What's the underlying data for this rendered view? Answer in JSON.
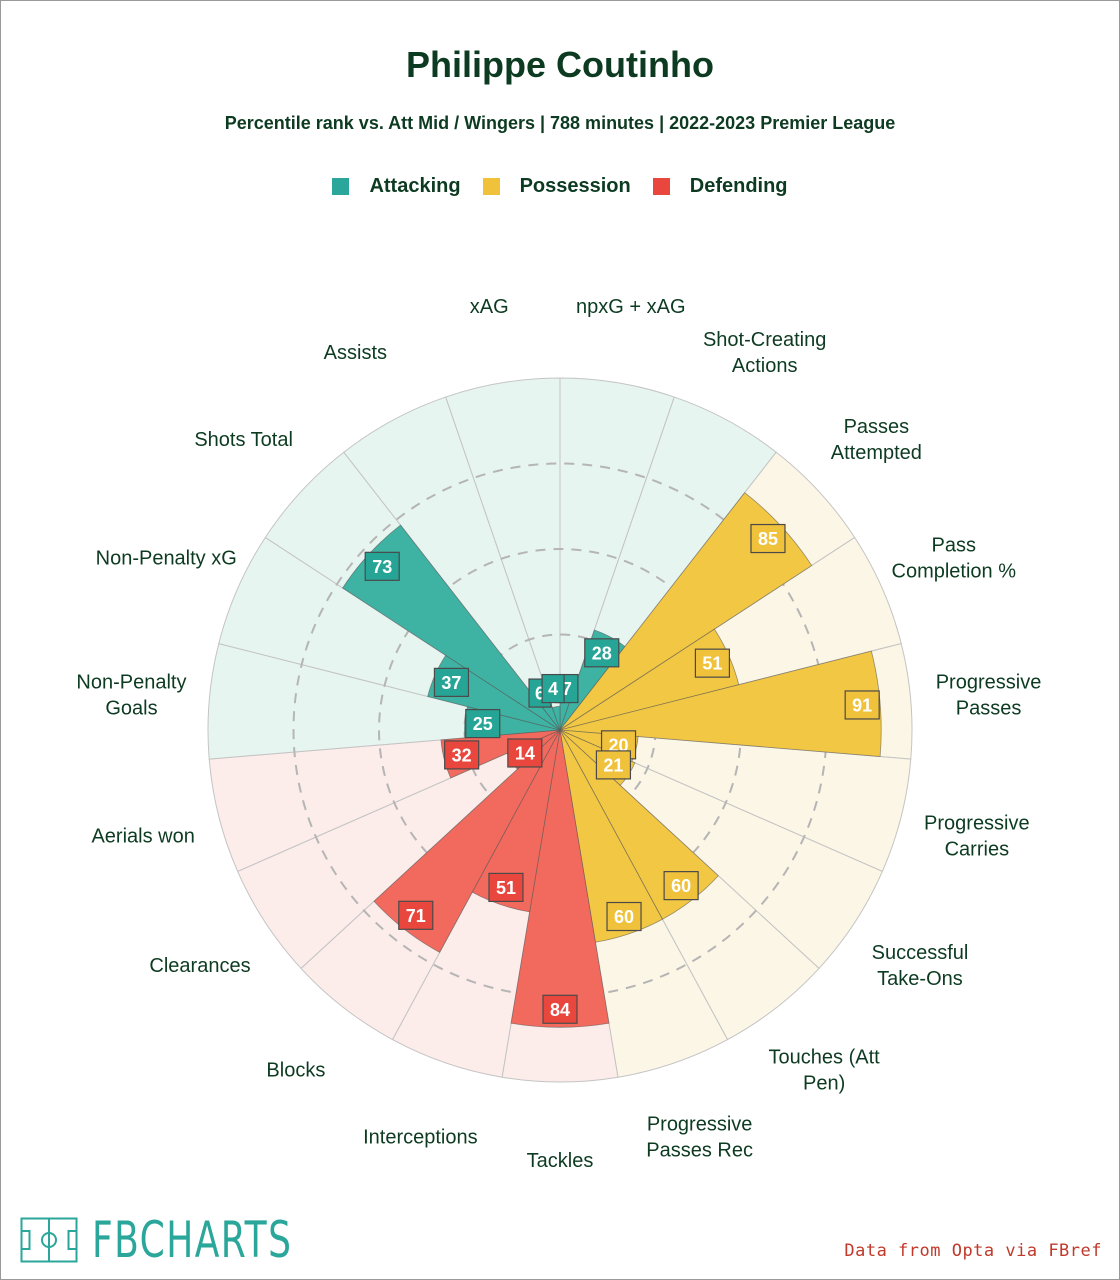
{
  "title": "Philippe Coutinho",
  "subtitle": "Percentile rank vs. Att Mid / Wingers | 788 minutes | 2022-2023 Premier League",
  "legend": [
    {
      "label": "Attacking",
      "color": "#2aa69a"
    },
    {
      "label": "Possession",
      "color": "#f0c13b"
    },
    {
      "label": "Defending",
      "color": "#e9473e"
    }
  ],
  "source": "Data from Opta via FBref",
  "logo": {
    "text": "FBCHARTS",
    "icon": "football-pitch-icon"
  },
  "chart_data": {
    "type": "radar-bar",
    "scale": [
      0,
      100
    ],
    "categories": [
      {
        "name": "Attacking",
        "fill": "#3fb3a3",
        "bg": "#e7f5f1",
        "tag": "#26a597"
      },
      {
        "name": "Possession",
        "fill": "#f2c744",
        "bg": "#fcf6e6",
        "tag": "#f0c13b"
      },
      {
        "name": "Defending",
        "fill": "#f26a5e",
        "bg": "#fcecea",
        "tag": "#e9473e"
      }
    ],
    "metrics": [
      {
        "label": "npxG + xAG",
        "value": 7,
        "category": "Attacking"
      },
      {
        "label": "Shot-Creating Actions",
        "value": 28,
        "category": "Attacking"
      },
      {
        "label": "Passes Attempted",
        "value": 85,
        "category": "Possession"
      },
      {
        "label": "Pass Completion %",
        "value": 51,
        "category": "Possession"
      },
      {
        "label": "Progressive Passes",
        "value": 91,
        "category": "Possession"
      },
      {
        "label": "Progressive Carries",
        "value": 20,
        "category": "Possession"
      },
      {
        "label": "Successful Take-Ons",
        "value": 21,
        "category": "Possession"
      },
      {
        "label": "Touches (Att Pen)",
        "value": 60,
        "category": "Possession"
      },
      {
        "label": "Progressive Passes Rec",
        "value": 60,
        "category": "Possession"
      },
      {
        "label": "Tackles",
        "value": 84,
        "category": "Defending"
      },
      {
        "label": "Interceptions",
        "value": 51,
        "category": "Defending"
      },
      {
        "label": "Blocks",
        "value": 71,
        "category": "Defending"
      },
      {
        "label": "Clearances",
        "value": 14,
        "category": "Defending"
      },
      {
        "label": "Aerials won",
        "value": 32,
        "category": "Defending"
      },
      {
        "label": "Non-Penalty Goals",
        "value": 25,
        "category": "Attacking"
      },
      {
        "label": "Non-Penalty xG",
        "value": 37,
        "category": "Attacking"
      },
      {
        "label": "Shots Total",
        "value": 73,
        "category": "Attacking"
      },
      {
        "label": "Assists",
        "value": 6,
        "category": "Attacking"
      },
      {
        "label": "xAG",
        "value": 4,
        "category": "Attacking"
      }
    ],
    "label_lines": [
      [
        "npxG + xAG"
      ],
      [
        "Shot-Creating",
        "Actions"
      ],
      [
        "Passes",
        "Attempted"
      ],
      [
        "Pass",
        "Completion %"
      ],
      [
        "Progressive",
        "Passes"
      ],
      [
        "Progressive",
        "Carries"
      ],
      [
        "Successful",
        "Take-Ons"
      ],
      [
        "Touches (Att",
        "Pen)"
      ],
      [
        "Progressive",
        "Passes Rec"
      ],
      [
        "Tackles"
      ],
      [
        "Interceptions"
      ],
      [
        "Blocks"
      ],
      [
        "Clearances"
      ],
      [
        "Aerials won"
      ],
      [
        "Non-Penalty",
        "Goals"
      ],
      [
        "Non-Penalty xG"
      ],
      [
        "Shots Total"
      ],
      [
        "Assists"
      ],
      [
        "xAG"
      ]
    ]
  }
}
